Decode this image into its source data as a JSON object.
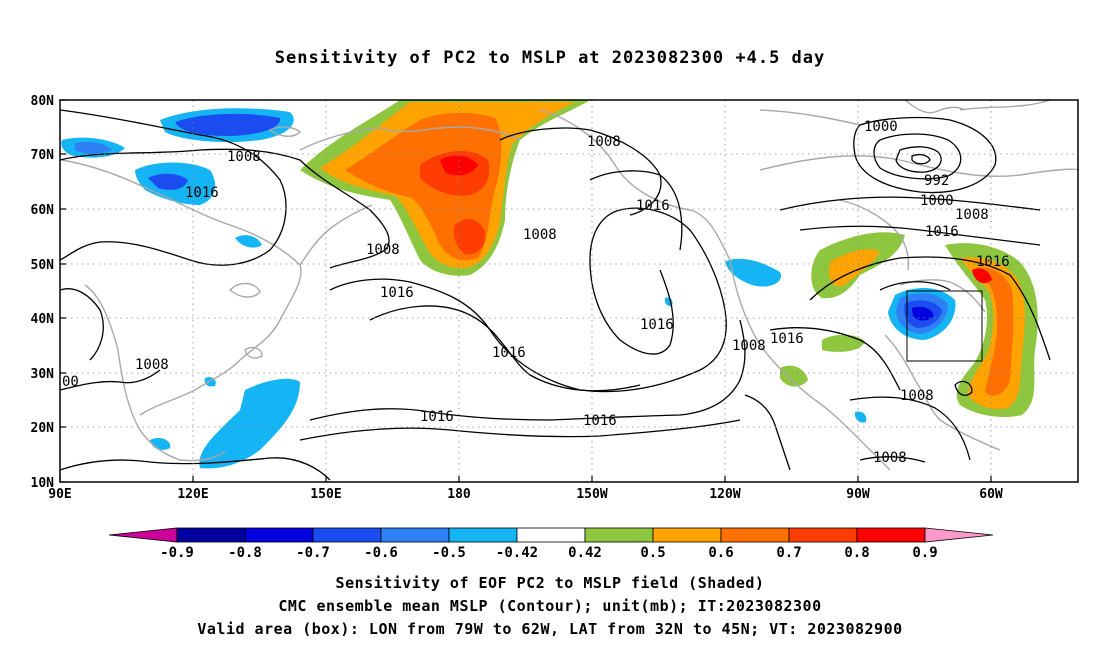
{
  "title": "Sensitivity of PC2 to MSLP at 2023082300 +4.5 day",
  "axes": {
    "lat_labels": [
      "80N",
      "70N",
      "60N",
      "50N",
      "40N",
      "30N",
      "20N",
      "10N"
    ],
    "lon_labels": [
      "90E",
      "120E",
      "150E",
      "180",
      "150W",
      "120W",
      "90W",
      "60W"
    ]
  },
  "isobars": {
    "unit": "mb",
    "labels": [
      "1008",
      "1016",
      "1008",
      "1016",
      "1008",
      "1016",
      "1016",
      "1008",
      "1016",
      "1008",
      "1000",
      "992",
      "1000",
      "1008",
      "1016",
      "1016",
      "1008",
      "1016",
      "1008",
      "1016",
      "1008",
      "1016",
      "1008",
      "00",
      "1016"
    ]
  },
  "colorbar": {
    "tick_labels": [
      "-0.9",
      "-0.8",
      "-0.7",
      "-0.6",
      "-0.5",
      "-0.42",
      "0.42",
      "0.5",
      "0.6",
      "0.7",
      "0.8",
      "0.9"
    ],
    "colors": [
      "#cc0099",
      "#0000a0",
      "#0000e0",
      "#1a4cf0",
      "#2f7ff5",
      "#14b4f5",
      "#ffffff",
      "#8ec63f",
      "#ffa300",
      "#ff7000",
      "#ff3d00",
      "#ff0000",
      "#ff99cc"
    ]
  },
  "shading_colors": {
    "green": "#8ec63f",
    "orange": "#ffa300",
    "dark_orange": "#ff7000",
    "red_orange": "#ff3d00",
    "red": "#ff0000",
    "cyan": "#14b4f5",
    "mid_blue": "#2f7ff5",
    "blue": "#1a4cf0",
    "dark_blue": "#0000e0"
  },
  "valid_box": {
    "lon_min": -79,
    "lon_max": -62,
    "lat_min": 32,
    "lat_max": 45
  },
  "captions": {
    "line1": "Sensitivity of EOF PC2 to MSLP field (Shaded)",
    "line2": "CMC ensemble mean MSLP (Contour); unit(mb); IT:2023082300",
    "line3": "Valid area (box): LON from 79W to 62W, LAT from 32N to 45N; VT: 2023082900"
  }
}
